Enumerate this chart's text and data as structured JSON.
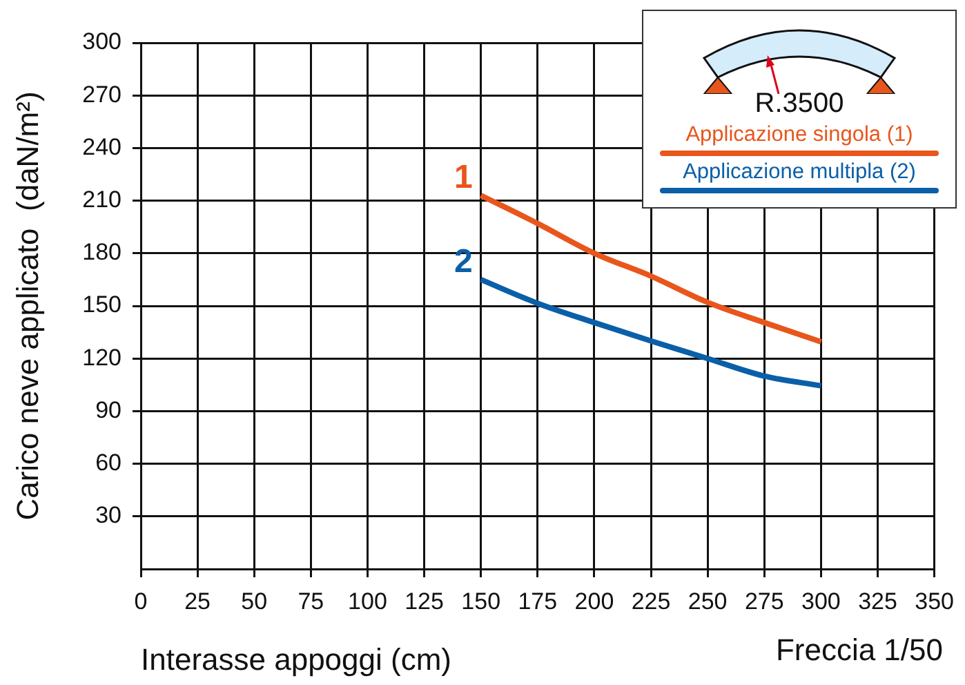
{
  "chart_data": {
    "type": "line",
    "xlabel": "Interasse appoggi (cm)",
    "ylabel": "Carico neve applicato  (daN/m²)",
    "x": [
      150,
      175,
      200,
      225,
      250,
      275,
      300
    ],
    "series": [
      {
        "name": "Applicazione singola (1)",
        "color": "#e8561c",
        "values": [
          213,
          197,
          180,
          167,
          152,
          140.5,
          129.5
        ]
      },
      {
        "name": "Applicazione multipla (2)",
        "color": "#0a5fa8",
        "values": [
          165,
          151.5,
          140.5,
          130,
          120,
          110,
          104.5
        ]
      }
    ],
    "xlim": [
      0,
      350
    ],
    "xticks": [
      0,
      25,
      50,
      75,
      100,
      125,
      150,
      175,
      200,
      225,
      250,
      275,
      300,
      325,
      350
    ],
    "ylim": [
      0,
      300
    ],
    "yticks": [
      30,
      60,
      90,
      120,
      150,
      180,
      210,
      240,
      270,
      300
    ],
    "grid": true,
    "legend": "top right",
    "marker": "none",
    "line_style": "solid",
    "annotations": [
      {
        "text": "1",
        "x": 150,
        "y": 213
      },
      {
        "text": "2",
        "x": 150,
        "y": 165
      },
      "R.3500",
      "Freccia 1/50"
    ]
  }
}
